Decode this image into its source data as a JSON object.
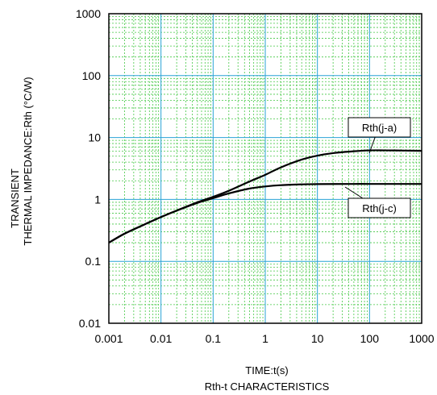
{
  "chart_data": {
    "type": "line",
    "title": "Rth-t CHARACTERISTICS",
    "xlabel": "TIME:t(s)",
    "ylabel_lines": [
      "TRANSIENT",
      "THERMAL IMPEDANCE:Rth (°C/W)"
    ],
    "xscale": "log",
    "yscale": "log",
    "xlim": [
      0.001,
      1000
    ],
    "ylim": [
      0.01,
      1000
    ],
    "x_ticks": [
      "0.001",
      "0.01",
      "0.1",
      "1",
      "10",
      "100",
      "1000"
    ],
    "y_ticks": [
      "0.01",
      "0.1",
      "1",
      "10",
      "100",
      "1000"
    ],
    "grid": true,
    "series": [
      {
        "name": "Rth(j-a)",
        "x": [
          0.001,
          0.002,
          0.005,
          0.01,
          0.02,
          0.05,
          0.1,
          0.2,
          0.5,
          1,
          2,
          5,
          10,
          20,
          50,
          100,
          200,
          500,
          1000
        ],
        "y": [
          0.2,
          0.28,
          0.4,
          0.52,
          0.66,
          0.9,
          1.1,
          1.38,
          1.95,
          2.5,
          3.3,
          4.4,
          5.1,
          5.6,
          6.0,
          6.2,
          6.2,
          6.15,
          6.1
        ]
      },
      {
        "name": "Rth(j-c)",
        "x": [
          0.001,
          0.002,
          0.005,
          0.01,
          0.02,
          0.05,
          0.1,
          0.2,
          0.5,
          1,
          2,
          5,
          10,
          50,
          100,
          1000
        ],
        "y": [
          0.2,
          0.28,
          0.4,
          0.52,
          0.66,
          0.88,
          1.05,
          1.25,
          1.5,
          1.62,
          1.7,
          1.75,
          1.77,
          1.78,
          1.78,
          1.78
        ]
      }
    ],
    "colors": {
      "curve": "#000000",
      "major_grid": "#29a3d6",
      "minor_grid": "#46c846",
      "frame": "#000000"
    }
  }
}
